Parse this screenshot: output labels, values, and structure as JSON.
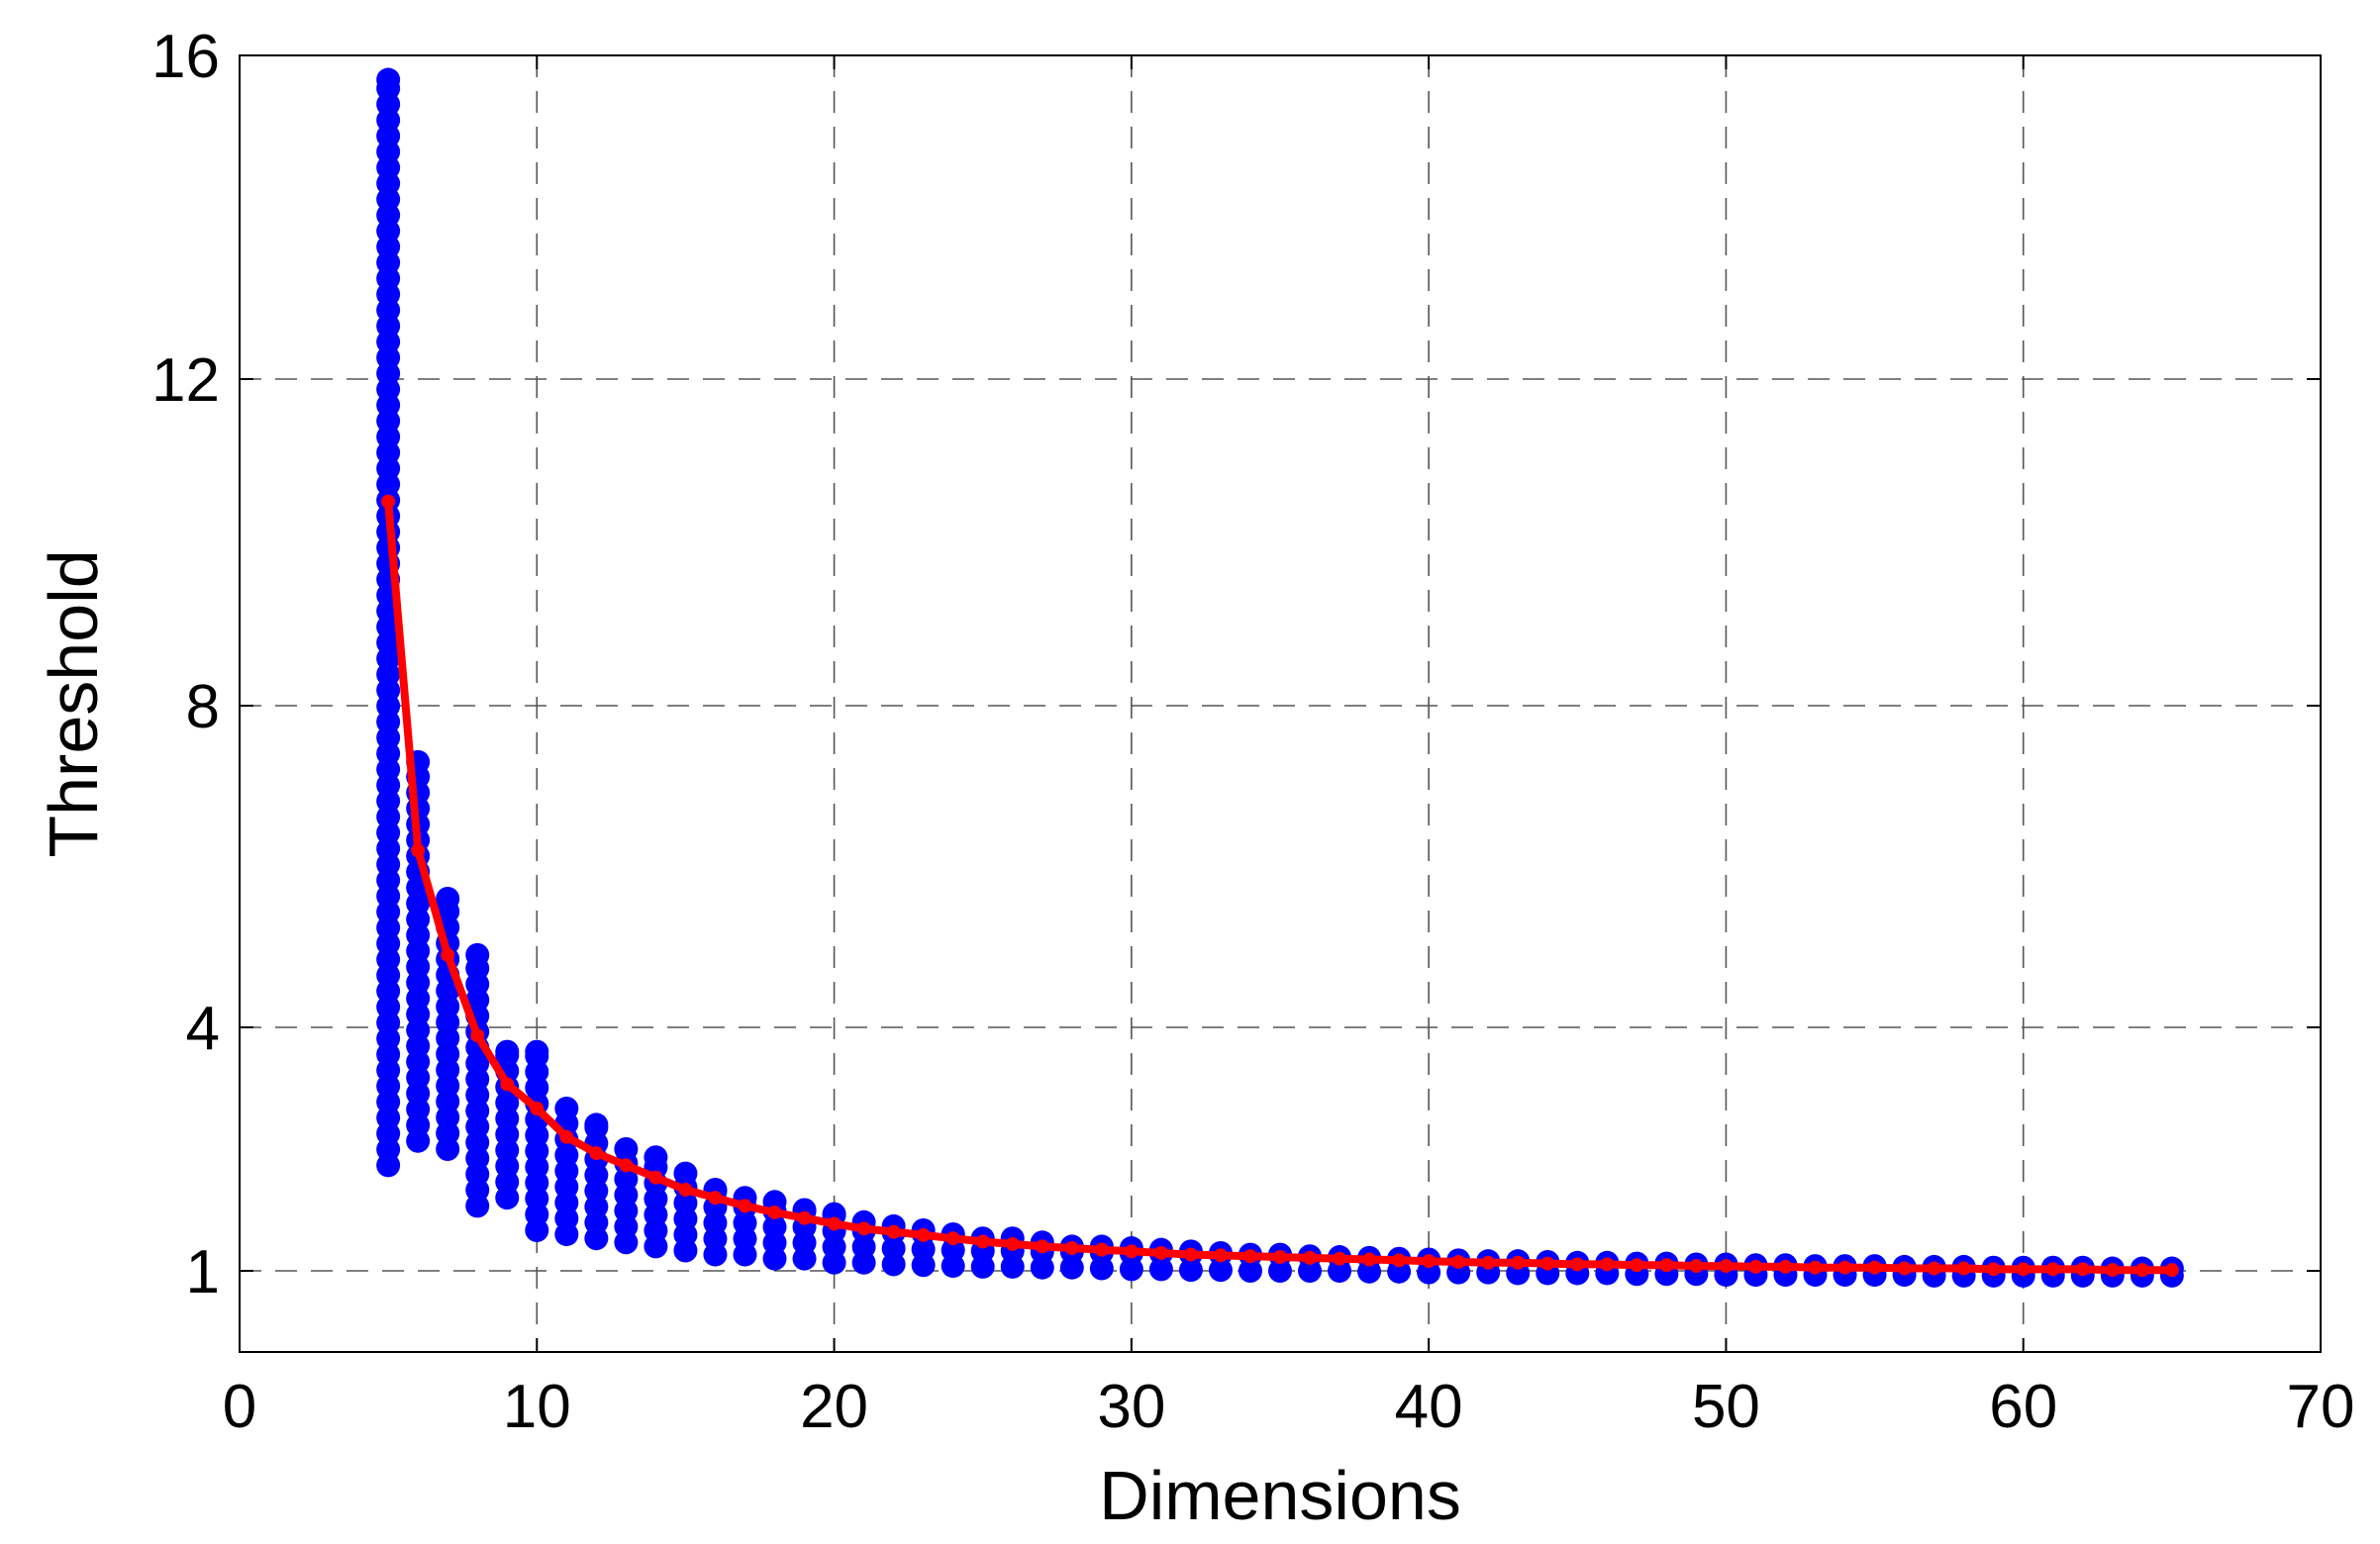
{
  "chart_data": {
    "type": "scatter",
    "xlabel": "Dimensions",
    "ylabel": "Threshold",
    "xlim": [
      0,
      70
    ],
    "ylim": [
      0,
      16
    ],
    "x_scale": "linear",
    "y_scale": "custom-piecewise",
    "x_ticks": [
      0,
      10,
      20,
      30,
      40,
      50,
      60,
      70
    ],
    "y_ticks": [
      1,
      4,
      8,
      12,
      16
    ],
    "grid": true,
    "legend": "none",
    "colors": {
      "scatter": "#0000ff",
      "line": "#ff0000",
      "grid": "#555555",
      "axes": "#000000"
    },
    "series": [
      {
        "type": "scatter",
        "x": [
          5,
          6,
          7,
          8,
          9,
          10,
          11,
          12,
          13,
          14,
          15,
          16,
          17,
          18,
          19,
          20,
          21,
          22,
          23,
          24,
          25,
          26,
          27,
          28,
          29,
          30,
          31,
          32,
          33,
          34,
          35,
          36,
          37,
          38,
          39,
          40,
          41,
          42,
          43,
          44,
          45,
          46,
          47,
          48,
          49,
          50,
          51,
          52,
          53,
          54,
          55,
          56,
          57,
          58,
          59,
          60,
          61,
          62,
          63,
          64,
          65
        ],
        "y_min": [
          2.3,
          2.6,
          2.5,
          1.8,
          1.9,
          1.5,
          1.45,
          1.4,
          1.35,
          1.3,
          1.25,
          1.2,
          1.2,
          1.15,
          1.15,
          1.1,
          1.1,
          1.08,
          1.07,
          1.06,
          1.05,
          1.05,
          1.04,
          1.04,
          1.03,
          1.02,
          1.02,
          1.01,
          1.01,
          1.0,
          1.0,
          1.0,
          1.0,
          0.99,
          0.99,
          0.98,
          0.98,
          0.98,
          0.97,
          0.97,
          0.97,
          0.97,
          0.96,
          0.96,
          0.96,
          0.95,
          0.95,
          0.95,
          0.95,
          0.95,
          0.95,
          0.95,
          0.94,
          0.94,
          0.94,
          0.94,
          0.94,
          0.94,
          0.94,
          0.94,
          0.94
        ],
        "y_max": [
          15.7,
          7.3,
          5.6,
          4.9,
          3.7,
          3.7,
          3.0,
          2.8,
          2.5,
          2.4,
          2.2,
          2.0,
          1.9,
          1.85,
          1.75,
          1.7,
          1.6,
          1.55,
          1.5,
          1.45,
          1.4,
          1.4,
          1.35,
          1.3,
          1.3,
          1.28,
          1.26,
          1.24,
          1.22,
          1.2,
          1.2,
          1.18,
          1.17,
          1.16,
          1.15,
          1.14,
          1.13,
          1.12,
          1.12,
          1.11,
          1.1,
          1.1,
          1.09,
          1.09,
          1.08,
          1.08,
          1.07,
          1.07,
          1.06,
          1.06,
          1.06,
          1.05,
          1.05,
          1.05,
          1.04,
          1.04,
          1.04,
          1.04,
          1.03,
          1.03,
          1.03
        ]
      },
      {
        "type": "line",
        "x": [
          5,
          6,
          7,
          8,
          9,
          10,
          11,
          12,
          13,
          14,
          15,
          16,
          17,
          18,
          19,
          20,
          21,
          22,
          23,
          24,
          25,
          26,
          27,
          28,
          29,
          30,
          31,
          32,
          33,
          34,
          35,
          36,
          37,
          38,
          39,
          40,
          41,
          42,
          43,
          44,
          45,
          46,
          47,
          48,
          49,
          50,
          51,
          52,
          53,
          54,
          55,
          56,
          57,
          58,
          59,
          60,
          61,
          62,
          63,
          64,
          65
        ],
        "y": [
          10.5,
          6.2,
          4.9,
          3.9,
          3.3,
          3.0,
          2.65,
          2.45,
          2.3,
          2.15,
          2.0,
          1.9,
          1.8,
          1.72,
          1.65,
          1.58,
          1.52,
          1.48,
          1.44,
          1.4,
          1.36,
          1.33,
          1.3,
          1.28,
          1.26,
          1.24,
          1.22,
          1.2,
          1.19,
          1.18,
          1.17,
          1.16,
          1.15,
          1.14,
          1.13,
          1.12,
          1.11,
          1.1,
          1.1,
          1.09,
          1.08,
          1.08,
          1.07,
          1.07,
          1.06,
          1.06,
          1.05,
          1.05,
          1.04,
          1.04,
          1.04,
          1.03,
          1.03,
          1.03,
          1.02,
          1.02,
          1.02,
          1.02,
          1.01,
          1.01,
          1.01
        ]
      }
    ]
  }
}
